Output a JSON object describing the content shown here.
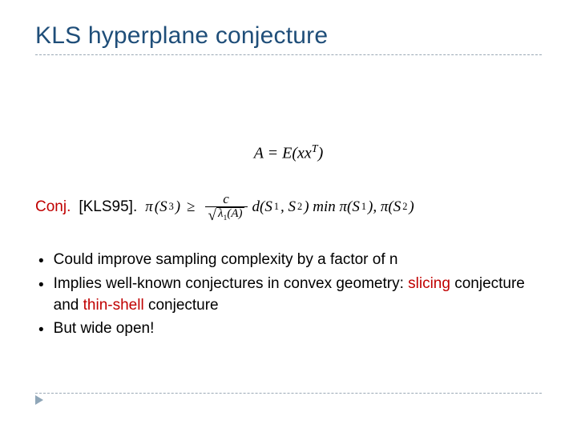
{
  "colors": {
    "title": "#1f4e79",
    "dashed": "#9aa8b5",
    "accent": "#c00000",
    "text": "#000000",
    "marker": "#8fa6b8"
  },
  "title": "KLS hyperplane conjecture",
  "equation": {
    "lhs": "A",
    "eq": " = ",
    "rhs_pre": "E(xx",
    "rhs_sup": "T",
    "rhs_post": ")"
  },
  "conjecture": {
    "label": "Conj.",
    "cite": "[KLS95].",
    "pi": "π",
    "s3": "(S",
    "s3_sub": "3",
    "close": ")",
    "geq": "≥",
    "frac_num": "c",
    "lambda": "λ",
    "lambda_sub": "1",
    "A_in": "(A)",
    "d": "d(S",
    "s1_sub": "1",
    "comma": ", S",
    "s2_sub": "2",
    "after_d": ") min π(S",
    "min_s1_sub": "1",
    "min_mid": "), π(S",
    "min_s2_sub": "2",
    "end": ")"
  },
  "bullets": [
    {
      "pre": "Could improve sampling complexity by a factor of n"
    },
    {
      "pre": "Implies well-known conjectures in convex geometry: ",
      "a1": "slicing",
      "mid": " conjecture and ",
      "a2": "thin-shell",
      "post": " conjecture"
    },
    {
      "pre": "But wide open!"
    }
  ]
}
